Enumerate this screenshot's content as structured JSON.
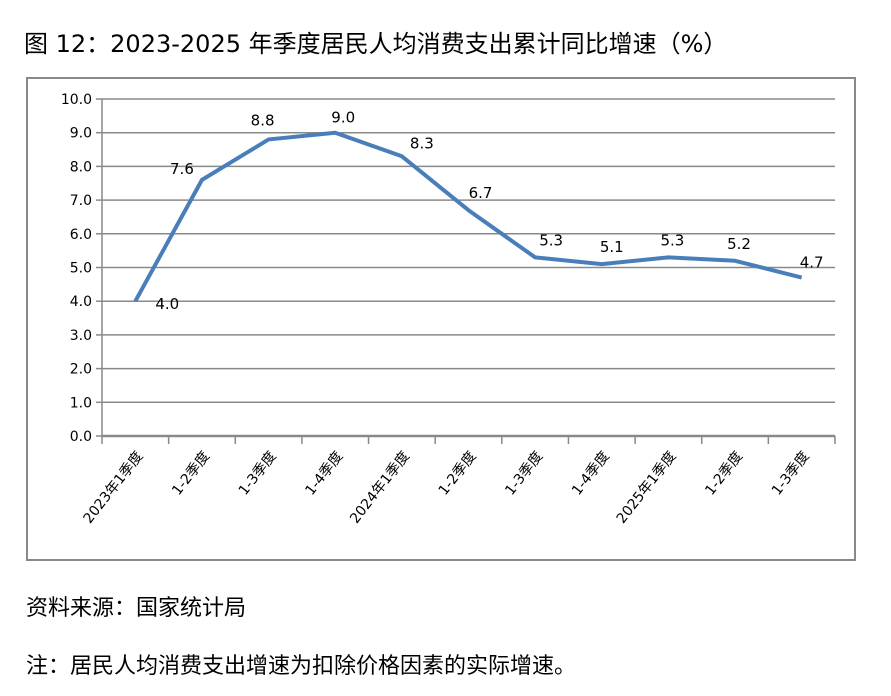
{
  "title": "图 12：2023-2025 年季度居民人均消费支出累计同比增速（%）",
  "source": "资料来源：国家统计局",
  "note": "注：居民人均消费支出增速为扣除价格因素的实际增速。",
  "chart_data": {
    "type": "line",
    "categories": [
      "2023年1季度",
      "1-2季度",
      "1-3季度",
      "1-4季度",
      "2024年1季度",
      "1-2季度",
      "1-3季度",
      "1-4季度",
      "2025年1季度",
      "1-2季度",
      "1-3季度"
    ],
    "series": [
      {
        "values": [
          4.0,
          7.6,
          8.8,
          9.0,
          8.3,
          6.7,
          5.3,
          5.1,
          5.3,
          5.2,
          4.7
        ],
        "color": "#4a7ebb"
      }
    ],
    "data_labels": [
      "4.0",
      "7.6",
      "8.8",
      "9.0",
      "8.3",
      "6.7",
      "5.3",
      "5.1",
      "5.3",
      "5.2",
      "4.7"
    ],
    "yticks": [
      "0.0",
      "1.0",
      "2.0",
      "3.0",
      "4.0",
      "5.0",
      "6.0",
      "7.0",
      "8.0",
      "9.0",
      "10.0"
    ],
    "ylim": [
      0,
      10
    ],
    "grid": true,
    "legend": "none"
  }
}
